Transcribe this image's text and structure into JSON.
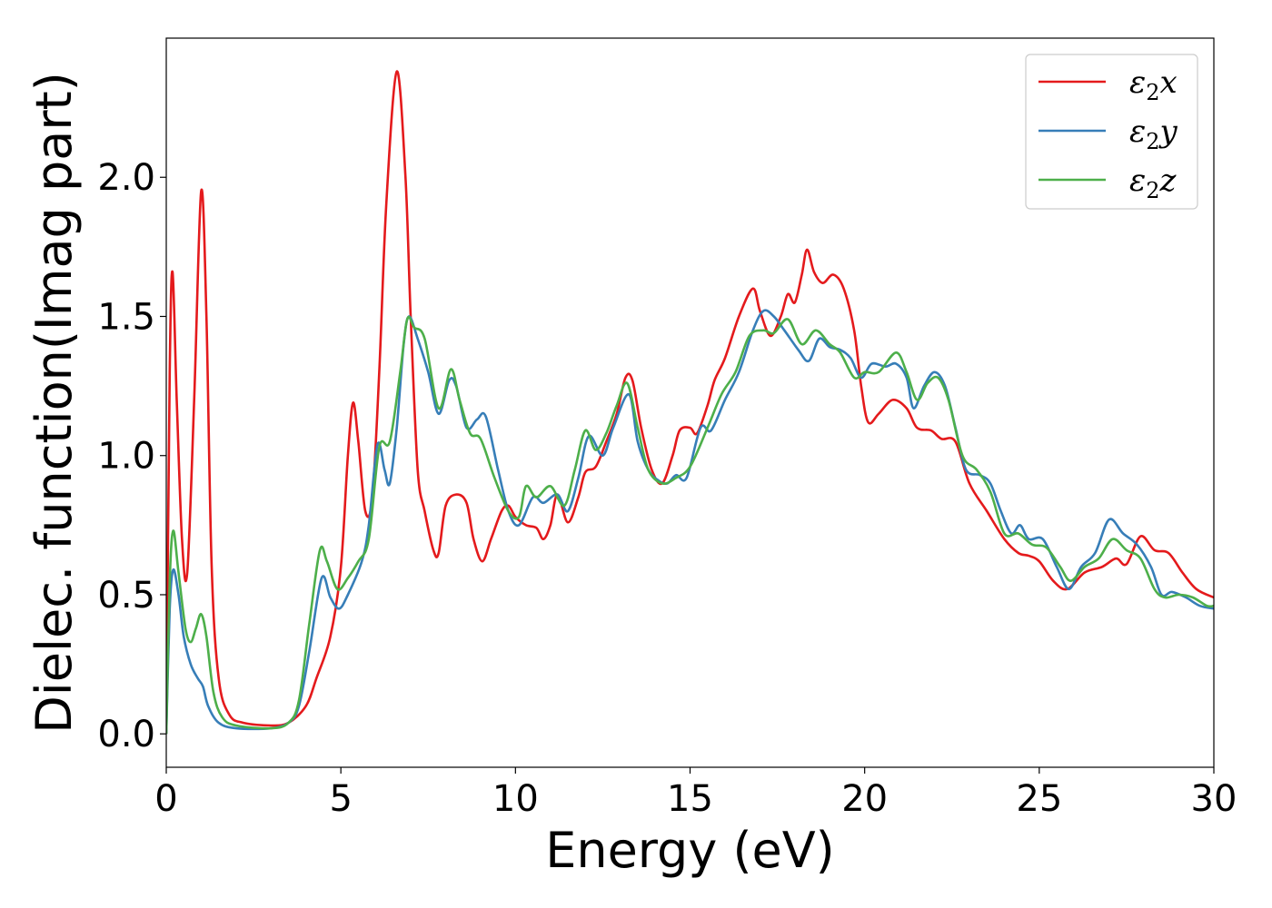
{
  "chart_data": {
    "type": "line",
    "xlabel": "Energy (eV)",
    "ylabel": "Dielec. function(Imag part)",
    "xlim": [
      0,
      30
    ],
    "ylim": [
      -0.12,
      2.5
    ],
    "xticks": [
      "0",
      "5",
      "10",
      "15",
      "20",
      "25",
      "30"
    ],
    "xtick_values": [
      0,
      5,
      10,
      15,
      20,
      25,
      30
    ],
    "yticks": [
      "0.0",
      "0.5",
      "1.0",
      "1.5",
      "2.0"
    ],
    "ytick_values": [
      0.0,
      0.5,
      1.0,
      1.5,
      2.0
    ],
    "grid": false,
    "legend_position": "top-right",
    "series": [
      {
        "name": "ε2x",
        "legend": {
          "base": "ε",
          "sub": "2",
          "suffix": "x"
        },
        "color": "#e41a1c",
        "points": [
          [
            0,
            0
          ],
          [
            0.1,
            1.3
          ],
          [
            0.18,
            1.66
          ],
          [
            0.3,
            1.2
          ],
          [
            0.45,
            0.7
          ],
          [
            0.6,
            0.58
          ],
          [
            0.8,
            1.2
          ],
          [
            1.0,
            1.95
          ],
          [
            1.15,
            1.5
          ],
          [
            1.3,
            0.6
          ],
          [
            1.5,
            0.2
          ],
          [
            1.8,
            0.07
          ],
          [
            2.2,
            0.04
          ],
          [
            3.0,
            0.03
          ],
          [
            3.5,
            0.04
          ],
          [
            4.0,
            0.1
          ],
          [
            4.3,
            0.2
          ],
          [
            4.7,
            0.35
          ],
          [
            5.0,
            0.6
          ],
          [
            5.2,
            1.0
          ],
          [
            5.35,
            1.19
          ],
          [
            5.5,
            1.05
          ],
          [
            5.7,
            0.8
          ],
          [
            5.9,
            0.85
          ],
          [
            6.1,
            1.3
          ],
          [
            6.3,
            1.9
          ],
          [
            6.6,
            2.38
          ],
          [
            6.85,
            2.0
          ],
          [
            7.0,
            1.5
          ],
          [
            7.2,
            0.95
          ],
          [
            7.4,
            0.8
          ],
          [
            7.65,
            0.66
          ],
          [
            7.8,
            0.65
          ],
          [
            8.0,
            0.82
          ],
          [
            8.3,
            0.86
          ],
          [
            8.6,
            0.83
          ],
          [
            8.8,
            0.7
          ],
          [
            9.05,
            0.62
          ],
          [
            9.3,
            0.7
          ],
          [
            9.6,
            0.8
          ],
          [
            9.8,
            0.82
          ],
          [
            10.0,
            0.78
          ],
          [
            10.3,
            0.75
          ],
          [
            10.6,
            0.74
          ],
          [
            10.8,
            0.7
          ],
          [
            11.0,
            0.75
          ],
          [
            11.2,
            0.86
          ],
          [
            11.5,
            0.76
          ],
          [
            11.8,
            0.85
          ],
          [
            12.0,
            0.94
          ],
          [
            12.3,
            0.96
          ],
          [
            12.6,
            1.05
          ],
          [
            12.9,
            1.15
          ],
          [
            13.15,
            1.28
          ],
          [
            13.35,
            1.27
          ],
          [
            13.6,
            1.1
          ],
          [
            13.9,
            0.95
          ],
          [
            14.2,
            0.9
          ],
          [
            14.5,
            1.0
          ],
          [
            14.7,
            1.09
          ],
          [
            15.0,
            1.1
          ],
          [
            15.2,
            1.08
          ],
          [
            15.5,
            1.18
          ],
          [
            15.7,
            1.27
          ],
          [
            16.0,
            1.35
          ],
          [
            16.4,
            1.5
          ],
          [
            16.8,
            1.6
          ],
          [
            17.0,
            1.52
          ],
          [
            17.3,
            1.43
          ],
          [
            17.6,
            1.5
          ],
          [
            17.8,
            1.58
          ],
          [
            18.0,
            1.55
          ],
          [
            18.2,
            1.65
          ],
          [
            18.35,
            1.74
          ],
          [
            18.55,
            1.66
          ],
          [
            18.8,
            1.62
          ],
          [
            19.1,
            1.65
          ],
          [
            19.4,
            1.6
          ],
          [
            19.7,
            1.45
          ],
          [
            19.9,
            1.25
          ],
          [
            20.1,
            1.12
          ],
          [
            20.4,
            1.15
          ],
          [
            20.8,
            1.2
          ],
          [
            21.2,
            1.17
          ],
          [
            21.5,
            1.1
          ],
          [
            21.9,
            1.09
          ],
          [
            22.2,
            1.06
          ],
          [
            22.6,
            1.05
          ],
          [
            23.0,
            0.9
          ],
          [
            23.5,
            0.8
          ],
          [
            24.0,
            0.7
          ],
          [
            24.4,
            0.65
          ],
          [
            24.7,
            0.64
          ],
          [
            25.0,
            0.62
          ],
          [
            25.4,
            0.55
          ],
          [
            25.8,
            0.52
          ],
          [
            26.3,
            0.58
          ],
          [
            26.8,
            0.6
          ],
          [
            27.2,
            0.63
          ],
          [
            27.5,
            0.61
          ],
          [
            27.9,
            0.71
          ],
          [
            28.3,
            0.66
          ],
          [
            28.7,
            0.65
          ],
          [
            29.1,
            0.58
          ],
          [
            29.5,
            0.52
          ],
          [
            30.0,
            0.49
          ]
        ]
      },
      {
        "name": "ε2y",
        "legend": {
          "base": "ε",
          "sub": "2",
          "suffix": "y"
        },
        "color": "#377eb8",
        "points": [
          [
            0,
            0
          ],
          [
            0.1,
            0.45
          ],
          [
            0.2,
            0.59
          ],
          [
            0.35,
            0.5
          ],
          [
            0.5,
            0.35
          ],
          [
            0.7,
            0.25
          ],
          [
            0.9,
            0.2
          ],
          [
            1.05,
            0.17
          ],
          [
            1.2,
            0.1
          ],
          [
            1.5,
            0.04
          ],
          [
            2.0,
            0.02
          ],
          [
            3.0,
            0.02
          ],
          [
            3.5,
            0.04
          ],
          [
            3.8,
            0.1
          ],
          [
            4.1,
            0.3
          ],
          [
            4.45,
            0.56
          ],
          [
            4.7,
            0.49
          ],
          [
            4.95,
            0.45
          ],
          [
            5.2,
            0.5
          ],
          [
            5.6,
            0.62
          ],
          [
            5.8,
            0.75
          ],
          [
            6.05,
            1.04
          ],
          [
            6.25,
            0.95
          ],
          [
            6.4,
            0.9
          ],
          [
            6.6,
            1.1
          ],
          [
            6.8,
            1.4
          ],
          [
            6.95,
            1.5
          ],
          [
            7.2,
            1.42
          ],
          [
            7.5,
            1.3
          ],
          [
            7.8,
            1.15
          ],
          [
            8.1,
            1.27
          ],
          [
            8.3,
            1.25
          ],
          [
            8.6,
            1.1
          ],
          [
            8.9,
            1.13
          ],
          [
            9.15,
            1.14
          ],
          [
            9.5,
            0.95
          ],
          [
            9.8,
            0.8
          ],
          [
            10.1,
            0.75
          ],
          [
            10.5,
            0.85
          ],
          [
            10.8,
            0.83
          ],
          [
            11.2,
            0.86
          ],
          [
            11.5,
            0.8
          ],
          [
            11.8,
            0.92
          ],
          [
            12.1,
            1.07
          ],
          [
            12.5,
            1.0
          ],
          [
            12.8,
            1.1
          ],
          [
            13.25,
            1.22
          ],
          [
            13.5,
            1.05
          ],
          [
            13.8,
            0.95
          ],
          [
            14.1,
            0.91
          ],
          [
            14.35,
            0.9
          ],
          [
            14.6,
            0.93
          ],
          [
            14.9,
            0.92
          ],
          [
            15.3,
            1.1
          ],
          [
            15.6,
            1.09
          ],
          [
            16.0,
            1.2
          ],
          [
            16.4,
            1.3
          ],
          [
            16.8,
            1.45
          ],
          [
            17.1,
            1.52
          ],
          [
            17.4,
            1.5
          ],
          [
            17.7,
            1.45
          ],
          [
            18.1,
            1.38
          ],
          [
            18.4,
            1.34
          ],
          [
            18.7,
            1.42
          ],
          [
            19.0,
            1.39
          ],
          [
            19.3,
            1.38
          ],
          [
            19.6,
            1.35
          ],
          [
            19.9,
            1.28
          ],
          [
            20.2,
            1.33
          ],
          [
            20.6,
            1.32
          ],
          [
            20.9,
            1.33
          ],
          [
            21.2,
            1.28
          ],
          [
            21.4,
            1.17
          ],
          [
            21.7,
            1.25
          ],
          [
            22.0,
            1.3
          ],
          [
            22.3,
            1.25
          ],
          [
            22.6,
            1.1
          ],
          [
            22.9,
            0.95
          ],
          [
            23.3,
            0.93
          ],
          [
            23.6,
            0.9
          ],
          [
            23.9,
            0.8
          ],
          [
            24.2,
            0.72
          ],
          [
            24.45,
            0.75
          ],
          [
            24.7,
            0.7
          ],
          [
            25.1,
            0.7
          ],
          [
            25.5,
            0.6
          ],
          [
            25.85,
            0.52
          ],
          [
            26.2,
            0.6
          ],
          [
            26.6,
            0.65
          ],
          [
            27.0,
            0.77
          ],
          [
            27.4,
            0.72
          ],
          [
            27.8,
            0.68
          ],
          [
            28.2,
            0.6
          ],
          [
            28.5,
            0.5
          ],
          [
            28.8,
            0.51
          ],
          [
            29.2,
            0.49
          ],
          [
            29.6,
            0.46
          ],
          [
            30.0,
            0.45
          ]
        ]
      },
      {
        "name": "ε2z",
        "legend": {
          "base": "ε",
          "sub": "2",
          "suffix": "z"
        },
        "color": "#4daf4a",
        "points": [
          [
            0,
            0
          ],
          [
            0.1,
            0.55
          ],
          [
            0.2,
            0.73
          ],
          [
            0.35,
            0.58
          ],
          [
            0.55,
            0.38
          ],
          [
            0.7,
            0.33
          ],
          [
            0.85,
            0.38
          ],
          [
            1.0,
            0.43
          ],
          [
            1.15,
            0.35
          ],
          [
            1.35,
            0.15
          ],
          [
            1.6,
            0.06
          ],
          [
            2.0,
            0.03
          ],
          [
            3.0,
            0.02
          ],
          [
            3.5,
            0.04
          ],
          [
            3.8,
            0.12
          ],
          [
            4.1,
            0.4
          ],
          [
            4.4,
            0.66
          ],
          [
            4.6,
            0.62
          ],
          [
            4.9,
            0.52
          ],
          [
            5.2,
            0.56
          ],
          [
            5.5,
            0.62
          ],
          [
            5.8,
            0.7
          ],
          [
            6.1,
            1.03
          ],
          [
            6.4,
            1.05
          ],
          [
            6.7,
            1.3
          ],
          [
            6.9,
            1.49
          ],
          [
            7.1,
            1.46
          ],
          [
            7.4,
            1.42
          ],
          [
            7.8,
            1.17
          ],
          [
            8.15,
            1.31
          ],
          [
            8.4,
            1.2
          ],
          [
            8.7,
            1.08
          ],
          [
            9.0,
            1.06
          ],
          [
            9.4,
            0.92
          ],
          [
            9.8,
            0.8
          ],
          [
            10.1,
            0.78
          ],
          [
            10.3,
            0.89
          ],
          [
            10.6,
            0.85
          ],
          [
            11.0,
            0.89
          ],
          [
            11.4,
            0.82
          ],
          [
            11.7,
            0.95
          ],
          [
            12.0,
            1.09
          ],
          [
            12.3,
            1.02
          ],
          [
            12.6,
            1.08
          ],
          [
            12.9,
            1.18
          ],
          [
            13.2,
            1.26
          ],
          [
            13.5,
            1.1
          ],
          [
            13.8,
            0.95
          ],
          [
            14.2,
            0.9
          ],
          [
            14.6,
            0.92
          ],
          [
            15.0,
            0.96
          ],
          [
            15.5,
            1.1
          ],
          [
            15.9,
            1.22
          ],
          [
            16.3,
            1.3
          ],
          [
            16.7,
            1.43
          ],
          [
            17.1,
            1.45
          ],
          [
            17.4,
            1.44
          ],
          [
            17.8,
            1.49
          ],
          [
            18.2,
            1.4
          ],
          [
            18.6,
            1.45
          ],
          [
            19.0,
            1.4
          ],
          [
            19.3,
            1.37
          ],
          [
            19.7,
            1.28
          ],
          [
            20.0,
            1.3
          ],
          [
            20.4,
            1.3
          ],
          [
            20.9,
            1.37
          ],
          [
            21.2,
            1.3
          ],
          [
            21.5,
            1.2
          ],
          [
            21.8,
            1.26
          ],
          [
            22.1,
            1.28
          ],
          [
            22.4,
            1.2
          ],
          [
            22.8,
            1.0
          ],
          [
            23.2,
            0.95
          ],
          [
            23.6,
            0.87
          ],
          [
            24.0,
            0.72
          ],
          [
            24.4,
            0.72
          ],
          [
            24.8,
            0.68
          ],
          [
            25.2,
            0.67
          ],
          [
            25.6,
            0.6
          ],
          [
            25.9,
            0.55
          ],
          [
            26.3,
            0.6
          ],
          [
            26.7,
            0.63
          ],
          [
            27.1,
            0.7
          ],
          [
            27.5,
            0.66
          ],
          [
            27.9,
            0.63
          ],
          [
            28.3,
            0.52
          ],
          [
            28.6,
            0.49
          ],
          [
            29.0,
            0.5
          ],
          [
            29.4,
            0.49
          ],
          [
            29.8,
            0.46
          ],
          [
            30.0,
            0.46
          ]
        ]
      }
    ]
  }
}
